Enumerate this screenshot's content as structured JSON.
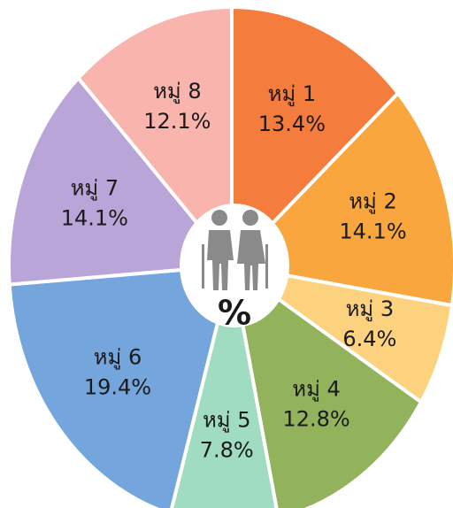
{
  "chart_data": {
    "type": "donut",
    "categories": [
      "หมู่ 1",
      "หมู่ 2",
      "หมู่ 3",
      "หมู่ 4",
      "หมู่ 5",
      "หมู่ 6",
      "หมู่ 7",
      "หมู่ 8"
    ],
    "values": [
      13.4,
      14.1,
      6.4,
      12.8,
      7.8,
      19.4,
      14.1,
      12.1
    ],
    "value_labels": [
      "13.4%",
      "14.1%",
      "6.4%",
      "12.8%",
      "7.8%",
      "19.4%",
      "14.1%",
      "12.1%"
    ],
    "colors": [
      "#f47c3c",
      "#f9a63e",
      "#fdd27e",
      "#92b25c",
      "#a0dcc2",
      "#74a6dd",
      "#baa5d9",
      "#f8b4ad"
    ],
    "center_label": "%"
  }
}
